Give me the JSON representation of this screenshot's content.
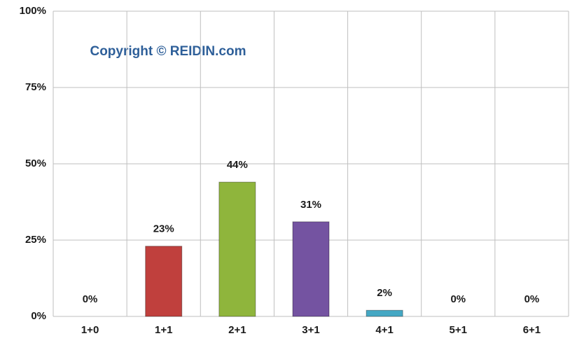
{
  "chart_data": {
    "type": "bar",
    "annotation": "Copyright © REIDIN.com",
    "categories": [
      "1+0",
      "1+1",
      "2+1",
      "3+1",
      "4+1",
      "5+1",
      "6+1"
    ],
    "values": [
      0,
      23,
      44,
      31,
      2,
      0,
      0
    ],
    "value_labels": [
      "0%",
      "23%",
      "44%",
      "31%",
      "2%",
      "0%",
      "0%"
    ],
    "colors": [
      "#4f81bd",
      "#c0403d",
      "#8fb53c",
      "#7453a1",
      "#45a8c4",
      "#f79646",
      "#4f81bd"
    ],
    "ylim": [
      0,
      100
    ],
    "yticks": [
      {
        "value": 0,
        "label": "0%"
      },
      {
        "value": 25,
        "label": "25%"
      },
      {
        "value": 50,
        "label": "50%"
      },
      {
        "value": 75,
        "label": "75%"
      },
      {
        "value": 100,
        "label": "100%"
      }
    ],
    "grid": true
  }
}
